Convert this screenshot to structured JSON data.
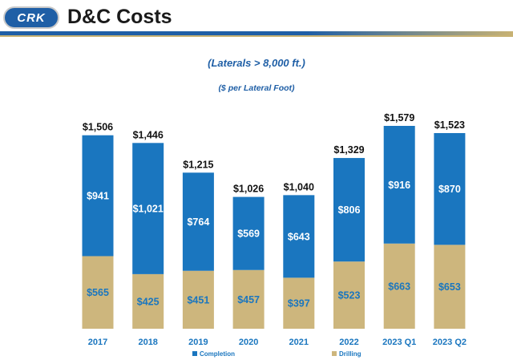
{
  "header": {
    "logo_text": "CRK",
    "title": "D&C Costs"
  },
  "colors": {
    "completion": "#1a76bf",
    "drilling": "#cdb67d",
    "header_blue": "#1f5fa6"
  },
  "chart_data": {
    "type": "bar",
    "stacked": true,
    "title": "(Laterals > 8,000 ft.)",
    "subtitle": "($ per Lateral Foot)",
    "categories": [
      "2017",
      "2018",
      "2019",
      "2020",
      "2021",
      "2022",
      "2023 Q1",
      "2023 Q2"
    ],
    "series": [
      {
        "name": "Drilling",
        "values": [
          565,
          425,
          451,
          457,
          397,
          523,
          663,
          653
        ],
        "labels": [
          "$565",
          "$425",
          "$451",
          "$457",
          "$397",
          "$523",
          "$663",
          "$653"
        ]
      },
      {
        "name": "Completion",
        "values": [
          941,
          1021,
          764,
          569,
          643,
          806,
          916,
          870
        ],
        "labels": [
          "$941",
          "$1,021",
          "$764",
          "$569",
          "$643",
          "$806",
          "$916",
          "$870"
        ]
      }
    ],
    "totals": [
      1506,
      1446,
      1215,
      1026,
      1040,
      1329,
      1579,
      1523
    ],
    "total_labels": [
      "$1,506",
      "$1,446",
      "$1,215",
      "$1,026",
      "$1,040",
      "$1,329",
      "$1,579",
      "$1,523"
    ],
    "ylim": [
      0,
      1579
    ],
    "legend": [
      "Completion",
      "Drilling"
    ],
    "legend_position": "bottom",
    "grid": false
  }
}
